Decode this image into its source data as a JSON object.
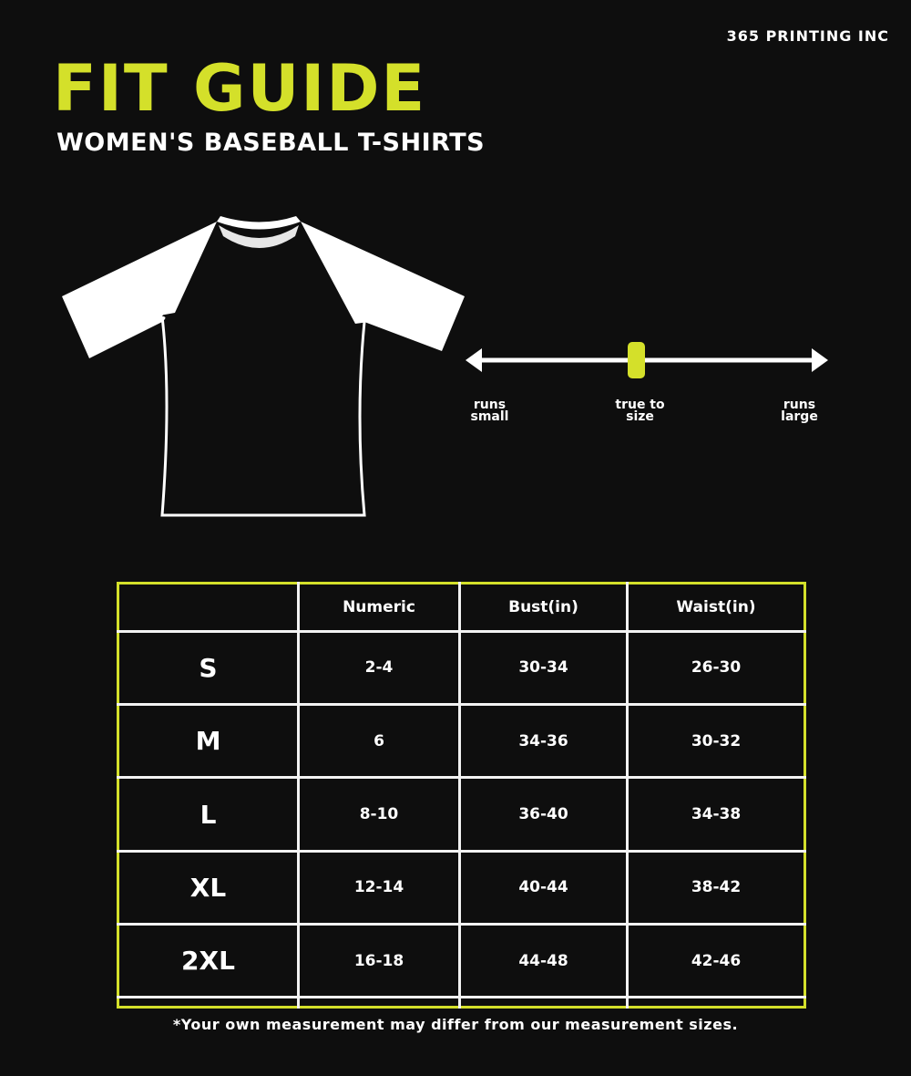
{
  "brand": "365 PRINTING INC",
  "title": "FIT GUIDE",
  "subtitle": "WOMEN'S BASEBALL T-SHIRTS",
  "colors": {
    "accent": "#d4e02a",
    "background": "#0e0e0e"
  },
  "fit_scale": {
    "labels": [
      "runs small",
      "true to size",
      "runs large"
    ],
    "selected": "true to size"
  },
  "table": {
    "headers": [
      "",
      "Numeric",
      "Bust(in)",
      "Waist(in)"
    ],
    "rows": [
      {
        "size": "S",
        "numeric": "2-4",
        "bust": "30-34",
        "waist": "26-30"
      },
      {
        "size": "M",
        "numeric": "6",
        "bust": "34-36",
        "waist": "30-32"
      },
      {
        "size": "L",
        "numeric": "8-10",
        "bust": "36-40",
        "waist": "34-38"
      },
      {
        "size": "XL",
        "numeric": "12-14",
        "bust": "40-44",
        "waist": "38-42"
      },
      {
        "size": "2XL",
        "numeric": "16-18",
        "bust": "44-48",
        "waist": "42-46"
      }
    ]
  },
  "note": "*Your own measurement may differ from our measurement sizes."
}
